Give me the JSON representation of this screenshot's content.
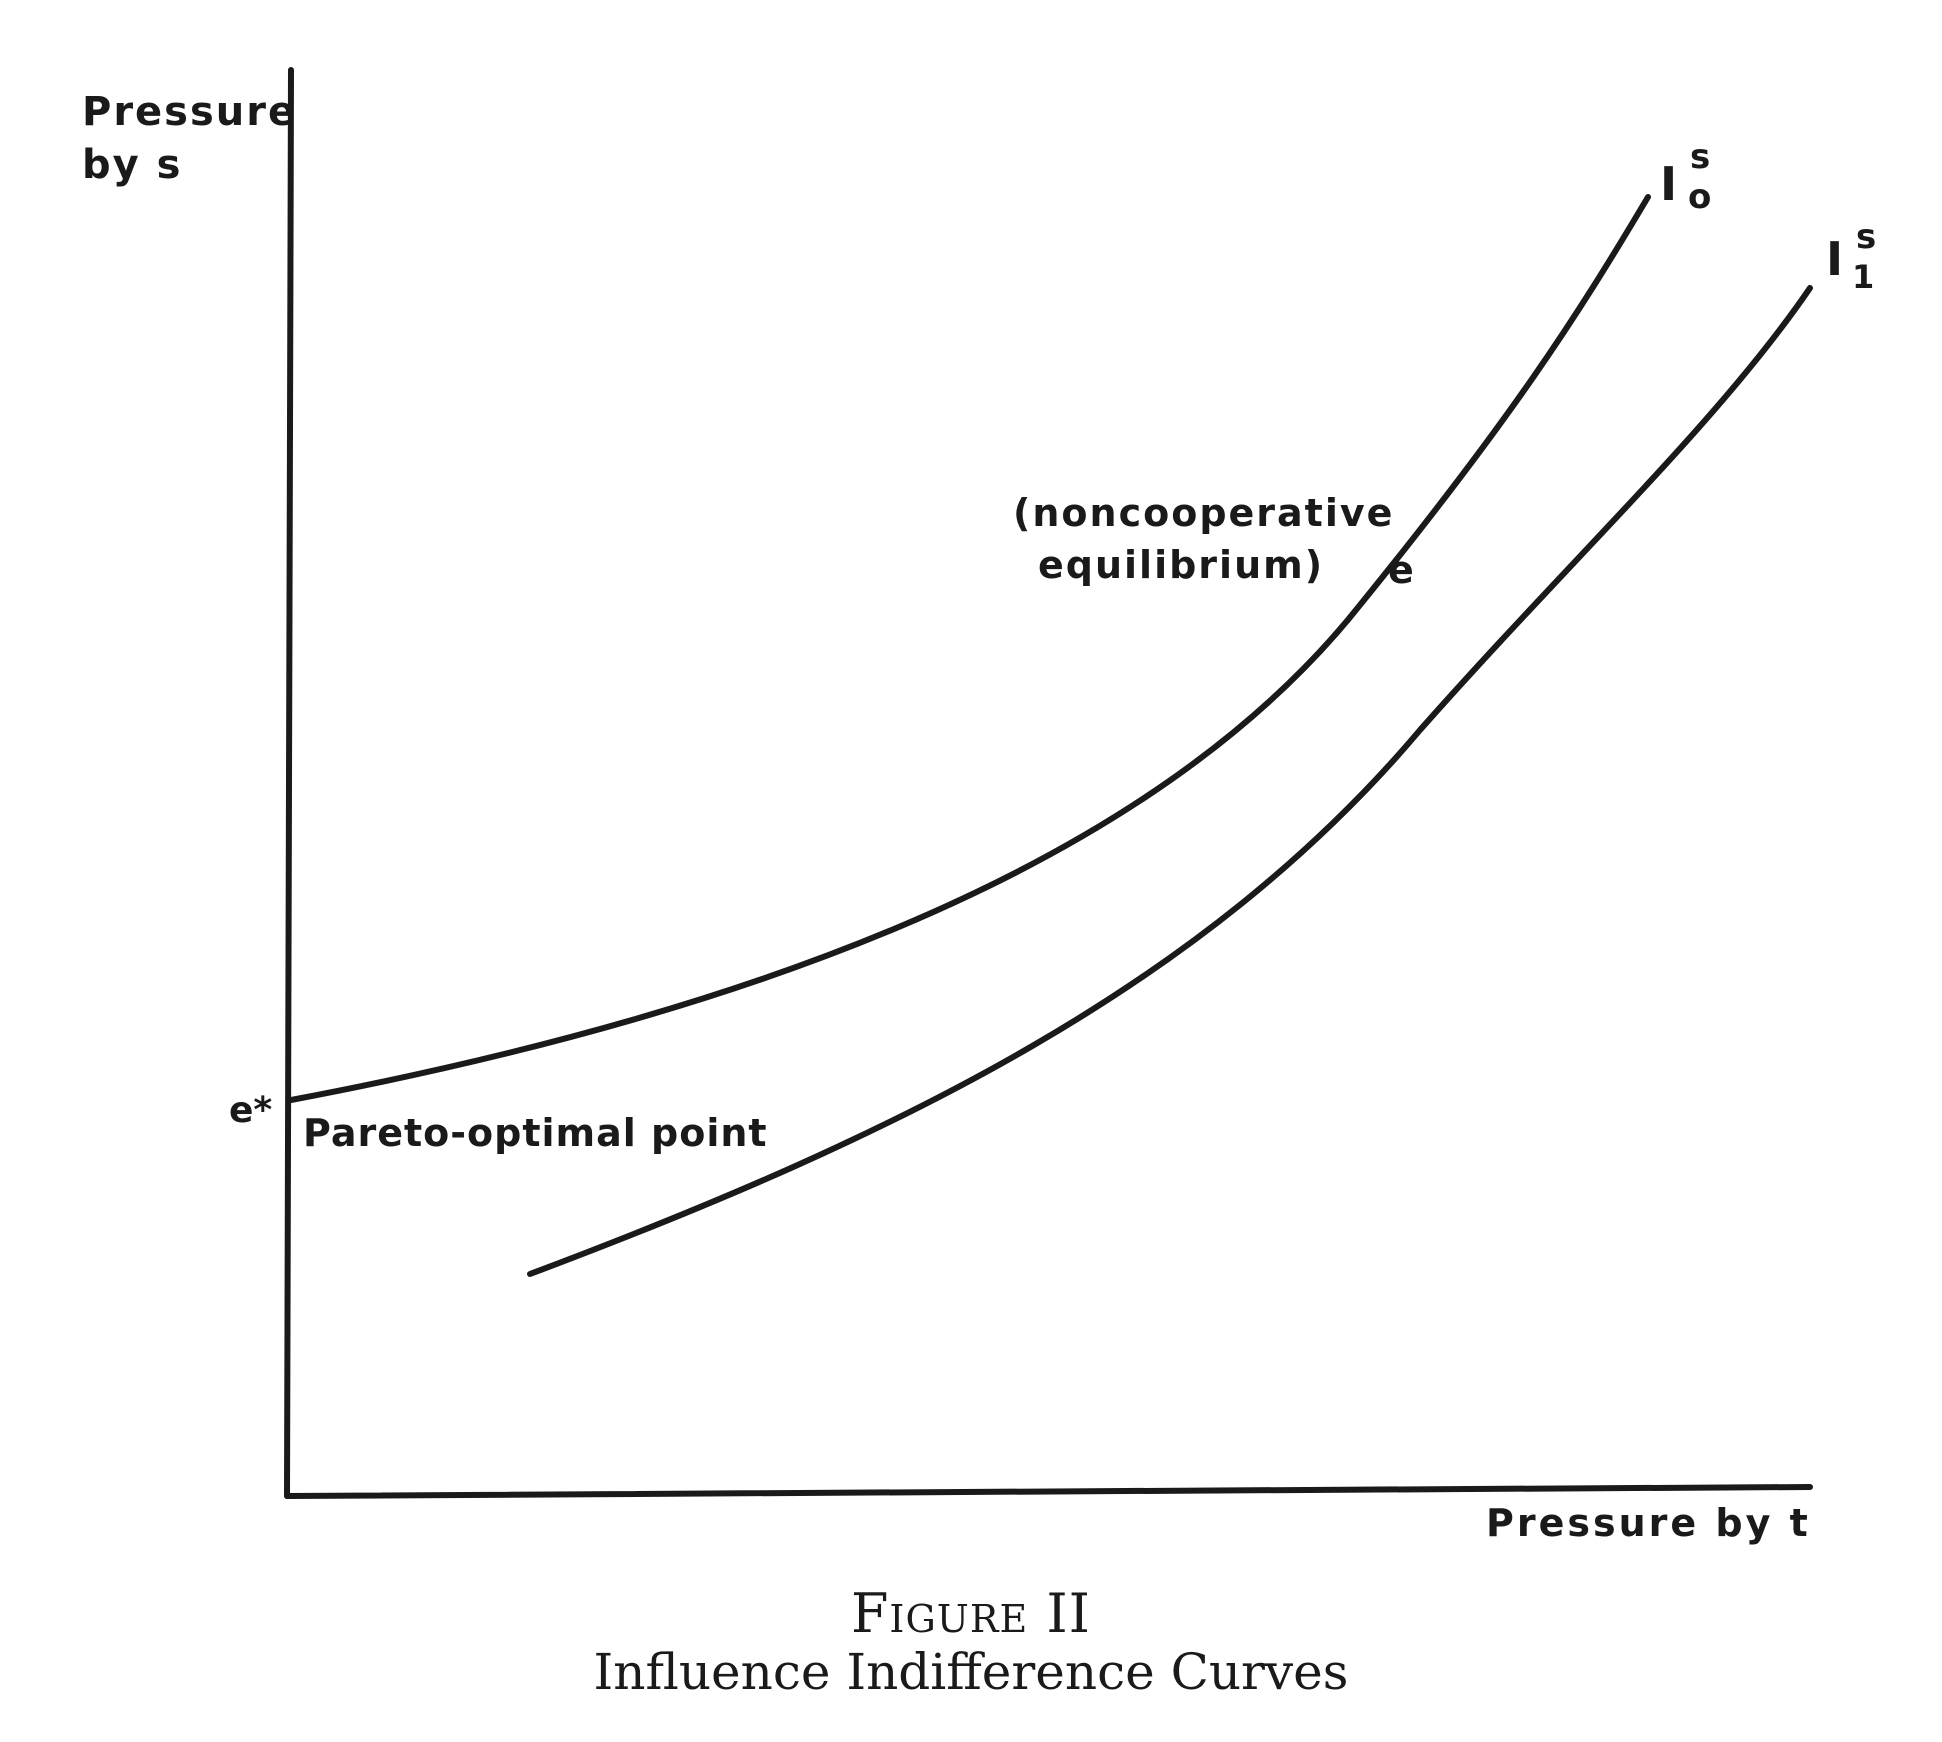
{
  "axes": {
    "y_label_lines": [
      "Pressure",
      "by s"
    ],
    "x_label": "Pressure by t"
  },
  "curves": [
    {
      "name": "I",
      "subscript": "o",
      "superscript": "s"
    },
    {
      "name": "I",
      "subscript": "1",
      "superscript": "s"
    }
  ],
  "points": {
    "pareto_marker": "e*",
    "pareto_label": "Pareto-optimal point",
    "equilibrium_marker": "e",
    "equilibrium_label_lines": [
      "(noncooperative",
      "equilibrium)"
    ]
  },
  "caption": {
    "number": "Figure II",
    "title": "Influence Indifference Curves"
  }
}
